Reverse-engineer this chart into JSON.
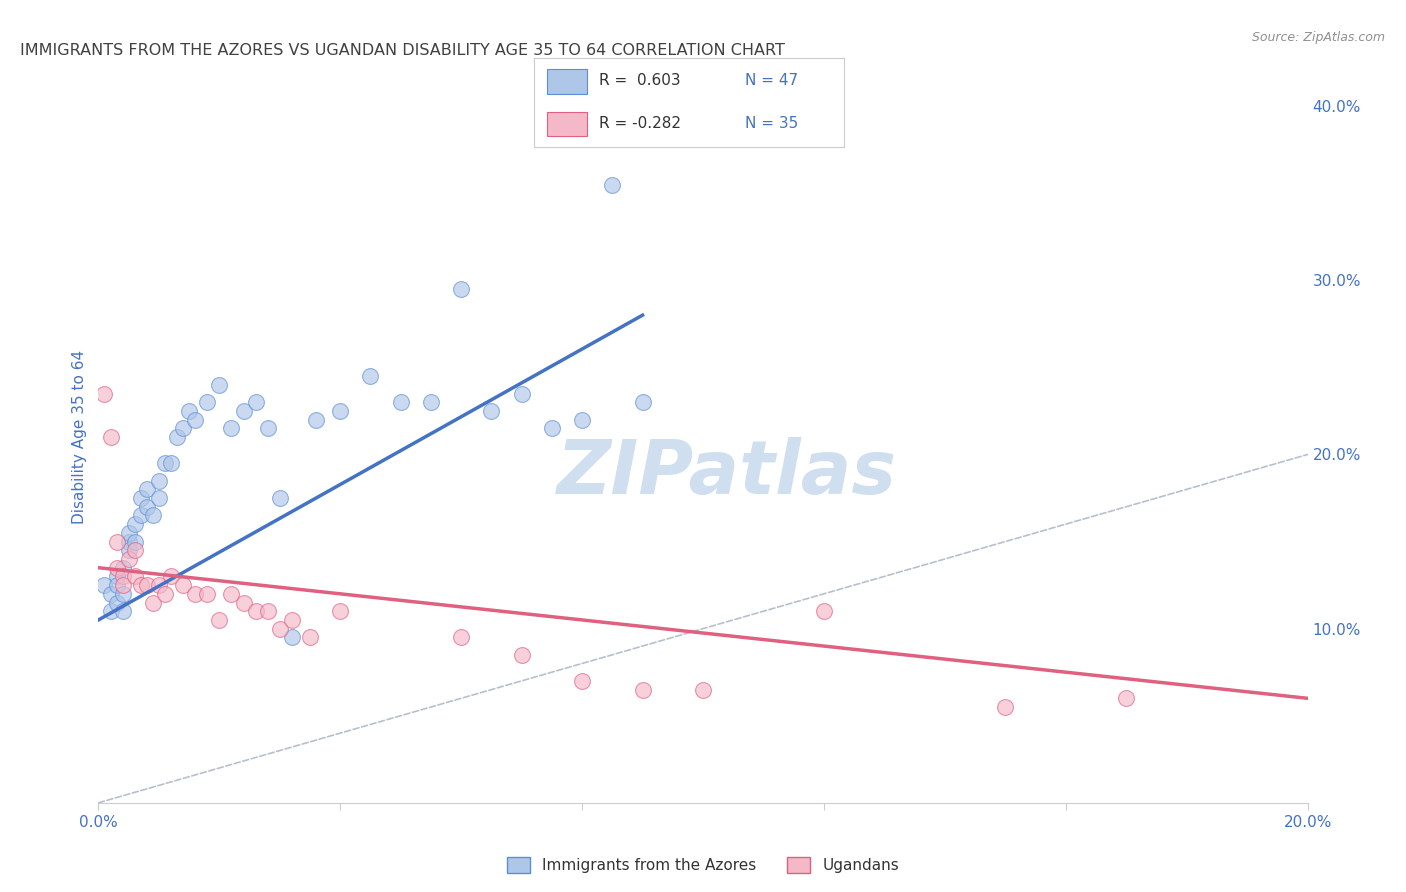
{
  "title": "IMMIGRANTS FROM THE AZORES VS UGANDAN DISABILITY AGE 35 TO 64 CORRELATION CHART",
  "source": "Source: ZipAtlas.com",
  "ylabel": "Disability Age 35 to 64",
  "xlim": [
    0.0,
    0.2
  ],
  "ylim": [
    0.0,
    0.42
  ],
  "xtick_positions": [
    0.0,
    0.04,
    0.08,
    0.12,
    0.16,
    0.2
  ],
  "xticklabels": [
    "0.0%",
    "",
    "",
    "",
    "",
    "20.0%"
  ],
  "yticks_right": [
    0.1,
    0.2,
    0.3,
    0.4
  ],
  "ytick_labels_right": [
    "10.0%",
    "20.0%",
    "30.0%",
    "40.0%"
  ],
  "legend_label_blue": "Immigrants from the Azores",
  "legend_label_pink": "Ugandans",
  "blue_color": "#aec6e8",
  "blue_edge_color": "#5b8fd4",
  "blue_line_color": "#4472c4",
  "pink_color": "#f4b8c8",
  "pink_edge_color": "#e06080",
  "pink_line_color": "#e06080",
  "ref_line_color": "#b0b8c8",
  "title_color": "#404040",
  "axis_color": "#4472c4",
  "text_color": "#333333",
  "background_color": "#ffffff",
  "grid_color": "#e8e8e8",
  "watermark_color": "#d0dff0",
  "blue_dots_x": [
    0.001,
    0.002,
    0.002,
    0.003,
    0.003,
    0.003,
    0.004,
    0.004,
    0.004,
    0.005,
    0.005,
    0.005,
    0.006,
    0.006,
    0.007,
    0.007,
    0.008,
    0.008,
    0.009,
    0.01,
    0.01,
    0.011,
    0.012,
    0.013,
    0.014,
    0.015,
    0.016,
    0.018,
    0.02,
    0.022,
    0.024,
    0.026,
    0.028,
    0.03,
    0.032,
    0.036,
    0.04,
    0.045,
    0.05,
    0.055,
    0.06,
    0.065,
    0.07,
    0.075,
    0.08,
    0.085,
    0.09
  ],
  "blue_dots_y": [
    0.125,
    0.12,
    0.11,
    0.13,
    0.125,
    0.115,
    0.135,
    0.12,
    0.11,
    0.15,
    0.155,
    0.145,
    0.16,
    0.15,
    0.175,
    0.165,
    0.18,
    0.17,
    0.165,
    0.185,
    0.175,
    0.195,
    0.195,
    0.21,
    0.215,
    0.225,
    0.22,
    0.23,
    0.24,
    0.215,
    0.225,
    0.23,
    0.215,
    0.175,
    0.095,
    0.22,
    0.225,
    0.245,
    0.23,
    0.23,
    0.295,
    0.225,
    0.235,
    0.215,
    0.22,
    0.355,
    0.23
  ],
  "pink_dots_x": [
    0.001,
    0.002,
    0.003,
    0.003,
    0.004,
    0.004,
    0.005,
    0.006,
    0.006,
    0.007,
    0.008,
    0.009,
    0.01,
    0.011,
    0.012,
    0.014,
    0.016,
    0.018,
    0.02,
    0.022,
    0.024,
    0.026,
    0.028,
    0.03,
    0.032,
    0.035,
    0.04,
    0.06,
    0.07,
    0.08,
    0.09,
    0.1,
    0.12,
    0.15,
    0.17
  ],
  "pink_dots_y": [
    0.235,
    0.21,
    0.135,
    0.15,
    0.13,
    0.125,
    0.14,
    0.145,
    0.13,
    0.125,
    0.125,
    0.115,
    0.125,
    0.12,
    0.13,
    0.125,
    0.12,
    0.12,
    0.105,
    0.12,
    0.115,
    0.11,
    0.11,
    0.1,
    0.105,
    0.095,
    0.11,
    0.095,
    0.085,
    0.07,
    0.065,
    0.065,
    0.11,
    0.055,
    0.06
  ],
  "blue_trend_x": [
    0.0,
    0.09
  ],
  "blue_trend_y": [
    0.105,
    0.28
  ],
  "pink_trend_x": [
    0.0,
    0.2
  ],
  "pink_trend_y": [
    0.135,
    0.06
  ],
  "ref_line_x": [
    0.0,
    0.42
  ],
  "ref_line_y": [
    0.0,
    0.42
  ],
  "dot_size": 130,
  "dot_alpha": 0.65,
  "dot_linewidth": 0.8
}
